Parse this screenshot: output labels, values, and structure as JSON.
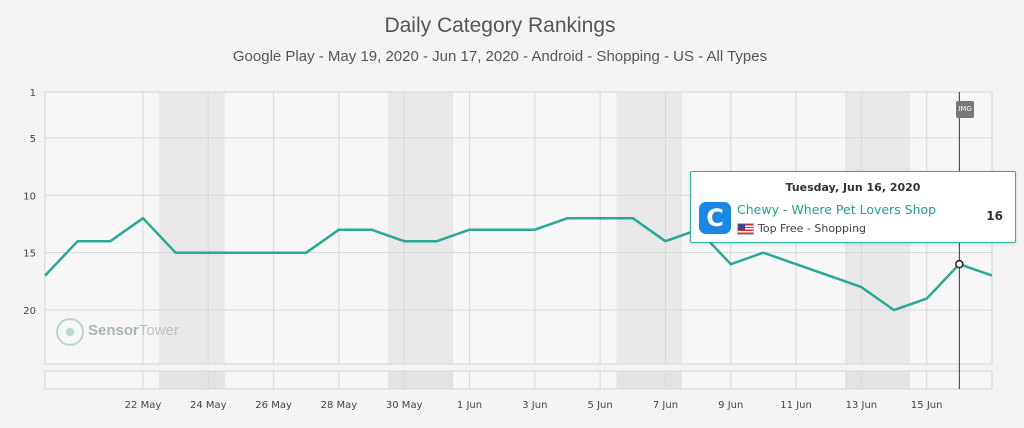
{
  "title": "Daily Category Rankings",
  "subtitle": "Google Play - May 19, 2020 - Jun 17, 2020 - Android - Shopping - US - All Types",
  "watermark": {
    "bold": "Sensor",
    "regular": "Tower"
  },
  "img_badge": "IMG",
  "tooltip": {
    "date": "Tuesday, Jun 16, 2020",
    "app_icon_letter": "C",
    "app_name": "Chewy - Where Pet Lovers Shop",
    "category": "Top Free - Shopping",
    "value": "16",
    "flag_icon": "us-flag-icon"
  },
  "colors": {
    "line": "#2aa897",
    "band": "#e8e8e8",
    "grid": "#d8d8d8"
  },
  "chart_data": {
    "type": "line",
    "title": "Daily Category Rankings",
    "subtitle": "Google Play - May 19, 2020 - Jun 17, 2020 - Android - Shopping - US - All Types",
    "y_axis": {
      "reversed": true,
      "ticks": [
        1,
        5,
        10,
        15,
        20
      ],
      "range": [
        1,
        24.7
      ]
    },
    "x_axis": {
      "start": "2020-05-19",
      "end": "2020-06-17",
      "tick_labels": [
        "22 May",
        "24 May",
        "26 May",
        "28 May",
        "30 May",
        "1 Jun",
        "3 Jun",
        "5 Jun",
        "7 Jun",
        "9 Jun",
        "11 Jun",
        "13 Jun",
        "15 Jun"
      ]
    },
    "weekend_bands": [
      [
        "2020-05-23",
        "2020-05-24"
      ],
      [
        "2020-05-30",
        "2020-05-31"
      ],
      [
        "2020-06-06",
        "2020-06-07"
      ],
      [
        "2020-06-13",
        "2020-06-14"
      ]
    ],
    "grid": true,
    "series": [
      {
        "name": "Chewy - Where Pet Lovers Shop",
        "x": [
          "2020-05-19",
          "2020-05-20",
          "2020-05-21",
          "2020-05-22",
          "2020-05-23",
          "2020-05-24",
          "2020-05-25",
          "2020-05-26",
          "2020-05-27",
          "2020-05-28",
          "2020-05-29",
          "2020-05-30",
          "2020-05-31",
          "2020-06-01",
          "2020-06-02",
          "2020-06-03",
          "2020-06-04",
          "2020-06-05",
          "2020-06-06",
          "2020-06-07",
          "2020-06-08",
          "2020-06-09",
          "2020-06-10",
          "2020-06-11",
          "2020-06-12",
          "2020-06-13",
          "2020-06-14",
          "2020-06-15",
          "2020-06-16",
          "2020-06-17"
        ],
        "values": [
          17,
          14,
          14,
          12,
          15,
          15,
          15,
          15,
          15,
          13,
          13,
          14,
          14,
          13,
          13,
          13,
          12,
          12,
          12,
          14,
          13,
          16,
          15,
          16,
          17,
          18,
          20,
          19,
          16,
          17
        ]
      }
    ],
    "highlight": {
      "x": "2020-06-16",
      "value": 16
    }
  }
}
